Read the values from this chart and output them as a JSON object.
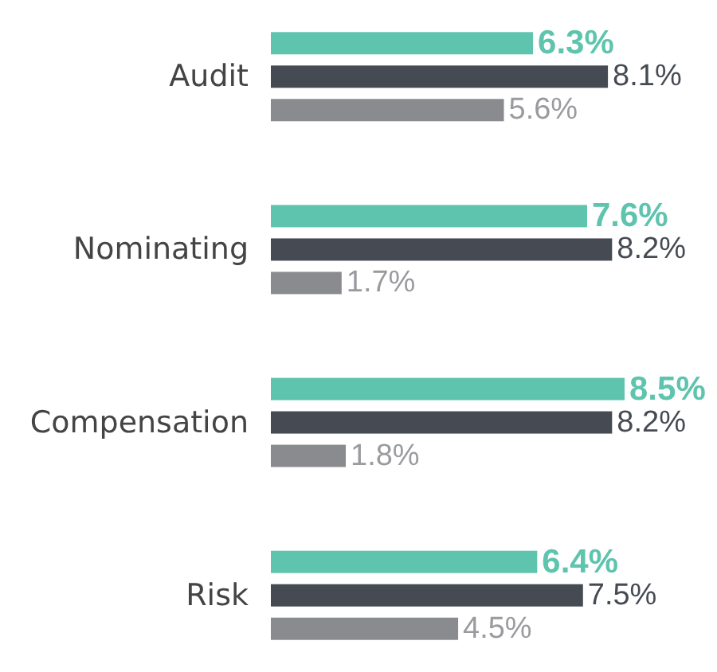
{
  "chart_data": {
    "type": "bar",
    "orientation": "horizontal",
    "categories": [
      "Audit",
      "Nominating",
      "Compensation",
      "Risk"
    ],
    "series": [
      {
        "color": "#5ec4ae",
        "values": [
          6.3,
          7.6,
          8.5,
          6.4
        ],
        "value_labels": [
          "6.3%",
          "7.6%",
          "8.5%",
          "6.4%"
        ]
      },
      {
        "color": "#464a52",
        "values": [
          8.1,
          8.2,
          8.2,
          7.5
        ],
        "value_labels": [
          "8.1%",
          "8.2%",
          "8.2%",
          "7.5%"
        ]
      },
      {
        "color": "#8a8b8e",
        "values": [
          5.6,
          1.7,
          1.8,
          4.5
        ],
        "value_labels": [
          "5.6%",
          "1.7%",
          "1.8%",
          "4.5%"
        ]
      }
    ]
  }
}
